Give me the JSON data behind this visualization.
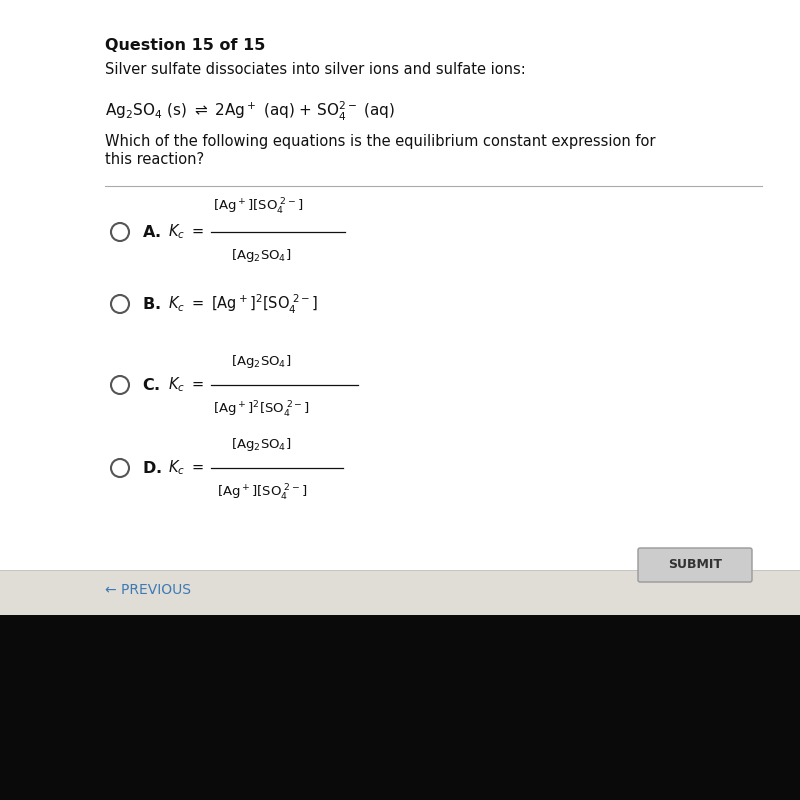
{
  "bg_top_color": "#e8e6e0",
  "bg_bottom_color": "#0a0a0a",
  "panel_color": "#ffffff",
  "title": "Question 15 of 15",
  "desc": "Silver sulfate dissociates into silver ions and sulfate ions:",
  "question": "Which of the following equations is the equilibrium constant expression for\nthis reaction?",
  "submit_bg": "#cccccc",
  "submit_text": "SUBMIT",
  "previous_text": "← PREVIOUS",
  "text_color": "#111111",
  "blue_color": "#3d7ab5",
  "divider_color": "#aaaaaa",
  "radio_color": "#555555"
}
